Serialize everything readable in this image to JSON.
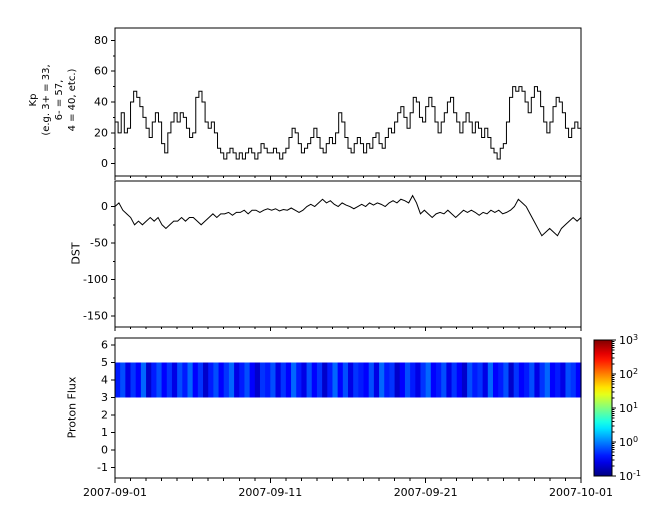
{
  "figure": {
    "background": "#ffffff",
    "line_color": "#000000"
  },
  "x_axis": {
    "range_days": [
      0,
      30
    ],
    "major_tick_days": [
      0,
      10,
      20,
      30
    ],
    "tick_labels": [
      "2007-09-01",
      "2007-09-11",
      "2007-09-21",
      "2007-10-01"
    ],
    "minor_tick_step_days": 1
  },
  "chart_data": [
    {
      "type": "line",
      "name": "kp",
      "step": true,
      "ylabel_lines": [
        "Kp",
        "(e.g. 3+ = 33,",
        "6- = 57,",
        "4 = 40, etc.)"
      ],
      "ylim": [
        -8,
        88
      ],
      "yticks": [
        0,
        20,
        40,
        60,
        80
      ],
      "yminor": [
        10,
        30,
        50,
        70
      ],
      "x_range_days": [
        0,
        30
      ],
      "values": [
        27,
        20,
        33,
        20,
        23,
        40,
        47,
        43,
        37,
        30,
        23,
        17,
        27,
        33,
        27,
        13,
        7,
        20,
        27,
        33,
        27,
        33,
        30,
        23,
        17,
        20,
        43,
        47,
        40,
        27,
        23,
        27,
        20,
        10,
        7,
        3,
        7,
        10,
        7,
        3,
        7,
        3,
        7,
        10,
        7,
        3,
        7,
        13,
        10,
        7,
        7,
        10,
        7,
        3,
        7,
        10,
        17,
        23,
        20,
        13,
        7,
        10,
        13,
        17,
        23,
        17,
        10,
        7,
        13,
        17,
        13,
        20,
        33,
        27,
        17,
        10,
        7,
        13,
        17,
        13,
        7,
        13,
        10,
        17,
        20,
        13,
        10,
        17,
        23,
        20,
        27,
        33,
        37,
        30,
        23,
        33,
        43,
        40,
        30,
        27,
        37,
        43,
        37,
        27,
        20,
        27,
        33,
        40,
        43,
        33,
        27,
        20,
        27,
        33,
        27,
        20,
        27,
        23,
        17,
        23,
        17,
        10,
        7,
        3,
        10,
        13,
        27,
        43,
        50,
        47,
        50,
        47,
        40,
        33,
        43,
        50,
        47,
        37,
        27,
        20,
        27,
        37,
        43,
        40,
        33,
        23,
        17,
        23,
        27,
        23
      ]
    },
    {
      "type": "line",
      "name": "dst",
      "ylabel": "DST",
      "ylim": [
        -165,
        35
      ],
      "yticks": [
        0,
        -50,
        -100,
        -150
      ],
      "yminor": [
        -25,
        -75,
        -125
      ],
      "x_range_days": [
        0,
        30
      ],
      "values": [
        0,
        5,
        -5,
        -10,
        -15,
        -25,
        -20,
        -25,
        -20,
        -15,
        -20,
        -15,
        -25,
        -30,
        -25,
        -20,
        -20,
        -15,
        -20,
        -15,
        -15,
        -20,
        -25,
        -20,
        -15,
        -10,
        -15,
        -10,
        -10,
        -8,
        -12,
        -8,
        -8,
        -5,
        -10,
        -5,
        -5,
        -8,
        -5,
        -3,
        -5,
        -3,
        -6,
        -4,
        -5,
        -2,
        -5,
        -8,
        -5,
        0,
        3,
        0,
        5,
        10,
        5,
        8,
        3,
        0,
        5,
        2,
        0,
        -3,
        0,
        3,
        0,
        5,
        2,
        5,
        3,
        0,
        5,
        8,
        5,
        10,
        8,
        5,
        15,
        5,
        -10,
        -5,
        -10,
        -15,
        -10,
        -8,
        -10,
        -5,
        -10,
        -15,
        -10,
        -5,
        -8,
        -5,
        -8,
        -12,
        -8,
        -10,
        -5,
        -8,
        -5,
        -10,
        -8,
        -5,
        0,
        10,
        5,
        0,
        -10,
        -20,
        -30,
        -40,
        -35,
        -30,
        -35,
        -40,
        -30,
        -25,
        -20,
        -15,
        -20,
        -15
      ]
    },
    {
      "type": "heatmap",
      "name": "proton_flux",
      "ylabel": "Proton Flux",
      "ylim": [
        -1.6,
        6.4
      ],
      "yticks": [
        6,
        5,
        4,
        3,
        2,
        1,
        0,
        -1
      ],
      "band_y": [
        3,
        5
      ],
      "x_range_days": [
        0,
        30
      ],
      "x_tick_labels": [
        "2007-09-01",
        "2007-09-11",
        "2007-09-21",
        "2007-10-01"
      ],
      "flux_log10": [
        -0.4,
        -0.2,
        -0.6,
        -0.3,
        -0.5,
        -0.1,
        -0.7,
        -0.4,
        -0.2,
        -0.5,
        -0.3,
        -0.6,
        -0.2,
        -0.4,
        -0.1,
        -0.5,
        -0.3,
        -0.7,
        -0.4,
        -0.2,
        -0.5,
        -0.3,
        -0.1,
        -0.6,
        -0.4,
        -0.2,
        -0.5,
        -0.7,
        -0.3,
        -0.4,
        -0.2,
        -0.6,
        -0.3,
        -0.5,
        -0.1,
        -0.4,
        -0.6,
        -0.2,
        -0.5,
        -0.3,
        -0.7,
        -0.4,
        -0.1,
        -0.5,
        -0.2,
        -0.6,
        -0.3,
        -0.4,
        -0.5,
        -0.2,
        -0.6,
        -0.1,
        -0.4,
        -0.3,
        -0.7,
        -0.5,
        -0.2,
        -0.4,
        -0.6,
        -0.3,
        -0.1,
        -0.5,
        -0.4,
        -0.2,
        -0.6,
        -0.3,
        -0.5,
        -0.7,
        -0.2,
        -0.4,
        -0.3,
        -0.6,
        -0.1,
        -0.5,
        -0.4,
        -0.2,
        -0.7,
        -0.3,
        -0.5,
        -0.4,
        -0.2,
        -0.6,
        -0.3,
        -0.1,
        -0.5,
        -0.4,
        -0.6,
        -0.2,
        -0.3,
        -0.5
      ],
      "colorbar": {
        "colormap": "jet",
        "scale": "log",
        "log_min_exp": -1,
        "log_max_exp": 3,
        "tick_exponents": [
          3,
          2,
          1,
          0,
          -1
        ],
        "tick_base": "10"
      }
    }
  ]
}
